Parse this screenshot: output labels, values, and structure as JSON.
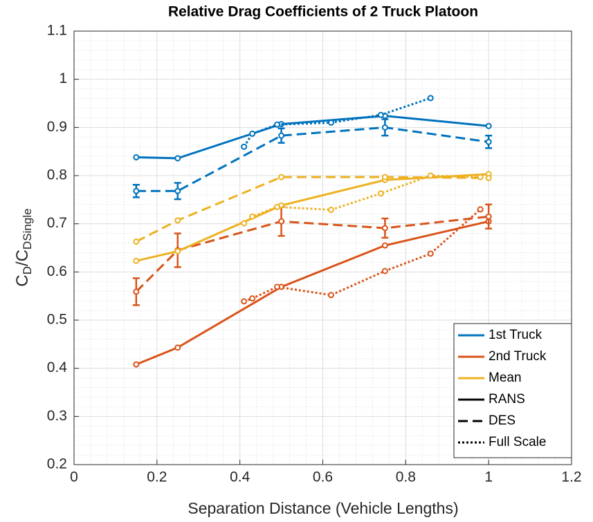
{
  "chart_data": {
    "type": "line",
    "title": "Relative Drag Coefficients of 2 Truck Platoon",
    "xlabel": "Separation Distance (Vehicle Lengths)",
    "ylabel": [
      {
        "text": "C",
        "sub": false
      },
      {
        "text": "D",
        "sub": true
      },
      {
        "text": "/C",
        "sub": false
      },
      {
        "text": "DSingle",
        "sub": true
      }
    ],
    "xlim": [
      0,
      1.2
    ],
    "xticks": [
      0,
      0.2,
      0.4,
      0.6,
      0.8,
      1,
      1.2
    ],
    "ylim": [
      0.2,
      1.1
    ],
    "yticks": [
      0.2,
      0.3,
      0.4,
      0.5,
      0.6,
      0.7,
      0.8,
      0.9,
      1,
      1.1
    ],
    "grid": true,
    "minor_grid": true,
    "legend_position": "lower right",
    "legend_colors": [
      {
        "name": "1st Truck",
        "color": "#0072bd"
      },
      {
        "name": "2nd Truck",
        "color": "#d95319"
      },
      {
        "name": "Mean",
        "color": "#edb120"
      }
    ],
    "legend_styles": [
      {
        "name": "RANS",
        "dash": "solid"
      },
      {
        "name": "DES",
        "dash": "dashed"
      },
      {
        "name": "Full Scale",
        "dash": "dotted"
      }
    ],
    "series": [
      {
        "color": "#0072bd",
        "dash": "solid",
        "x": [
          0.15,
          0.25,
          0.5,
          0.75,
          1
        ],
        "values": [
          0.838,
          0.836,
          0.907,
          0.924,
          0.903
        ]
      },
      {
        "color": "#0072bd",
        "dash": "dashed",
        "x": [
          0.15,
          0.25,
          0.5,
          0.75,
          1
        ],
        "values": [
          0.768,
          0.768,
          0.883,
          0.9,
          0.87
        ],
        "errors": [
          0.013,
          0.017,
          0.015,
          0.017,
          0.013
        ]
      },
      {
        "color": "#0072bd",
        "dash": "dotted",
        "x": [
          0.41,
          0.43,
          0.49,
          0.62,
          0.74,
          0.86
        ],
        "values": [
          0.86,
          0.887,
          0.906,
          0.91,
          0.926,
          0.961
        ]
      },
      {
        "color": "#d95319",
        "dash": "solid",
        "x": [
          0.15,
          0.25,
          0.5,
          0.75,
          1
        ],
        "values": [
          0.408,
          0.443,
          0.569,
          0.655,
          0.705
        ]
      },
      {
        "color": "#d95319",
        "dash": "dashed",
        "x": [
          0.15,
          0.25,
          0.5,
          0.75,
          1
        ],
        "values": [
          0.559,
          0.645,
          0.705,
          0.691,
          0.715
        ],
        "errors": [
          0.028,
          0.035,
          0.03,
          0.02,
          0.025
        ]
      },
      {
        "color": "#d95319",
        "dash": "dotted",
        "x": [
          0.41,
          0.43,
          0.49,
          0.62,
          0.75,
          0.86,
          0.98
        ],
        "values": [
          0.539,
          0.545,
          0.569,
          0.552,
          0.602,
          0.638,
          0.73
        ]
      },
      {
        "color": "#edb120",
        "dash": "solid",
        "x": [
          0.15,
          0.25,
          0.5,
          0.75,
          1
        ],
        "values": [
          0.623,
          0.643,
          0.738,
          0.791,
          0.803
        ]
      },
      {
        "color": "#edb120",
        "dash": "dashed",
        "x": [
          0.15,
          0.25,
          0.5,
          0.75,
          1
        ],
        "values": [
          0.663,
          0.707,
          0.797,
          0.797,
          0.795
        ]
      },
      {
        "color": "#edb120",
        "dash": "dotted",
        "x": [
          0.41,
          0.43,
          0.49,
          0.62,
          0.74,
          0.86,
          0.98
        ],
        "values": [
          0.701,
          0.715,
          0.735,
          0.729,
          0.763,
          0.8,
          0.797
        ]
      }
    ]
  }
}
